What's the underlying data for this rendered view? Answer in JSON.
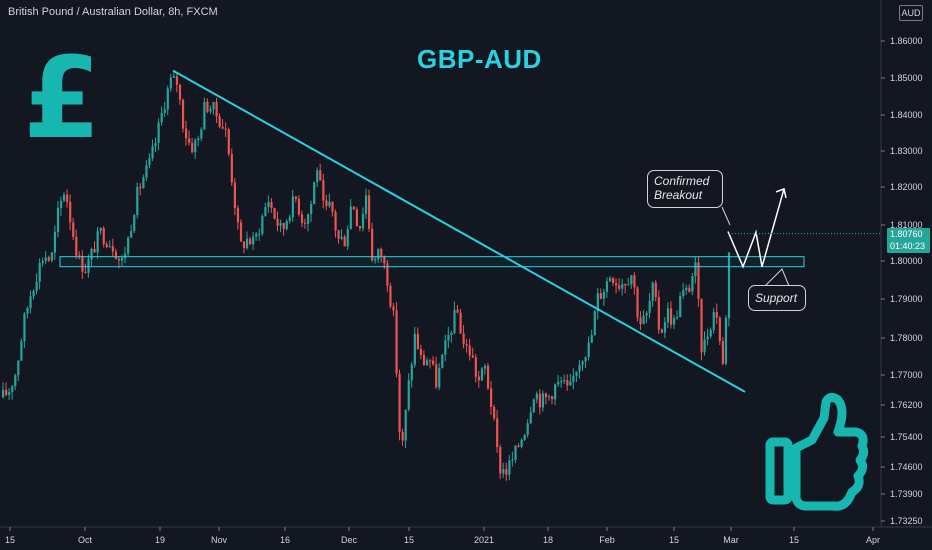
{
  "header": {
    "symbol_title": "British Pound / Australian Dollar, 8h, FXCM"
  },
  "title": "GBP-AUD",
  "currency": "AUD",
  "last_price": {
    "price": "1.80760",
    "countdown": "01:40:23"
  },
  "annotations": {
    "breakout_line1": "Confirmed",
    "breakout_line2": "Breakout",
    "support": "Support"
  },
  "icons": {
    "pound": "pound-sign-icon",
    "thumbs_up": "thumbs-up-icon"
  },
  "colors": {
    "background": "#131722",
    "bull": "#26a69a",
    "bear": "#ef5350",
    "accent": "#26d3e0",
    "text": "#d1d4dc"
  },
  "chart_data": {
    "type": "candlestick",
    "title": "GBP-AUD",
    "symbol": "British Pound / Australian Dollar, 8h, FXCM",
    "ylim": [
      1.7315,
      1.873
    ],
    "y_ticks": [
      "1.86000",
      "1.85000",
      "1.84000",
      "1.83000",
      "1.82000",
      "1.81000",
      "1.80000",
      "1.79000",
      "1.78000",
      "1.77000",
      "1.76200",
      "1.75400",
      "1.74600",
      "1.73900",
      "1.73250"
    ],
    "x_ticks": [
      "15",
      "Oct",
      "19",
      "Nov",
      "16",
      "Dec",
      "15",
      "2021",
      "18",
      "Feb",
      "15",
      "Mar",
      "15",
      "Apr"
    ],
    "close_path": [
      [
        1,
        1.764
      ],
      [
        8,
        1.766
      ],
      [
        15,
        1.771
      ],
      [
        22,
        1.783
      ],
      [
        29,
        1.791
      ],
      [
        36,
        1.797
      ],
      [
        43,
        1.802
      ],
      [
        50,
        1.8
      ],
      [
        57,
        1.813
      ],
      [
        64,
        1.82
      ],
      [
        71,
        1.809
      ],
      [
        78,
        1.8
      ],
      [
        85,
        1.798
      ],
      [
        92,
        1.803
      ],
      [
        99,
        1.808
      ],
      [
        106,
        1.806
      ],
      [
        113,
        1.804
      ],
      [
        120,
        1.799
      ],
      [
        127,
        1.806
      ],
      [
        134,
        1.816
      ],
      [
        141,
        1.822
      ],
      [
        148,
        1.826
      ],
      [
        155,
        1.833
      ],
      [
        162,
        1.842
      ],
      [
        169,
        1.849
      ],
      [
        176,
        1.849
      ],
      [
        183,
        1.836
      ],
      [
        190,
        1.831
      ],
      [
        197,
        1.833
      ],
      [
        204,
        1.843
      ],
      [
        211,
        1.842
      ],
      [
        218,
        1.839
      ],
      [
        225,
        1.835
      ],
      [
        232,
        1.82
      ],
      [
        239,
        1.804
      ],
      [
        246,
        1.806
      ],
      [
        253,
        1.805
      ],
      [
        260,
        1.811
      ],
      [
        267,
        1.817
      ],
      [
        274,
        1.812
      ],
      [
        281,
        1.808
      ],
      [
        288,
        1.814
      ],
      [
        295,
        1.817
      ],
      [
        302,
        1.811
      ],
      [
        309,
        1.814
      ],
      [
        316,
        1.826
      ],
      [
        323,
        1.813
      ],
      [
        330,
        1.815
      ],
      [
        337,
        1.806
      ],
      [
        344,
        1.806
      ],
      [
        351,
        1.817
      ],
      [
        358,
        1.809
      ],
      [
        365,
        1.818
      ],
      [
        372,
        1.799
      ],
      [
        379,
        1.803
      ],
      [
        386,
        1.796
      ],
      [
        393,
        1.784
      ],
      [
        400,
        1.748
      ],
      [
        407,
        1.766
      ],
      [
        414,
        1.781
      ],
      [
        421,
        1.773
      ],
      [
        428,
        1.775
      ],
      [
        435,
        1.768
      ],
      [
        442,
        1.775
      ],
      [
        449,
        1.782
      ],
      [
        456,
        1.787
      ],
      [
        463,
        1.778
      ],
      [
        470,
        1.776
      ],
      [
        477,
        1.768
      ],
      [
        484,
        1.772
      ],
      [
        491,
        1.761
      ],
      [
        498,
        1.746
      ],
      [
        505,
        1.745
      ],
      [
        512,
        1.748
      ],
      [
        519,
        1.753
      ],
      [
        526,
        1.758
      ],
      [
        533,
        1.766
      ],
      [
        540,
        1.763
      ],
      [
        547,
        1.764
      ],
      [
        554,
        1.767
      ],
      [
        561,
        1.768
      ],
      [
        568,
        1.765
      ],
      [
        575,
        1.772
      ],
      [
        582,
        1.776
      ],
      [
        589,
        1.778
      ],
      [
        596,
        1.79
      ],
      [
        603,
        1.793
      ],
      [
        610,
        1.797
      ],
      [
        617,
        1.794
      ],
      [
        624,
        1.795
      ],
      [
        631,
        1.797
      ],
      [
        638,
        1.784
      ],
      [
        645,
        1.785
      ],
      [
        652,
        1.793
      ],
      [
        659,
        1.781
      ],
      [
        666,
        1.787
      ],
      [
        673,
        1.784
      ],
      [
        680,
        1.791
      ],
      [
        687,
        1.792
      ],
      [
        694,
        1.799
      ],
      [
        701,
        1.776
      ],
      [
        708,
        1.783
      ],
      [
        715,
        1.788
      ],
      [
        722,
        1.772
      ],
      [
        729,
        1.8076
      ]
    ],
    "resistance_zone": [
      1.7985,
      1.8012
    ],
    "trendline": {
      "from": [
        173,
        1.852
      ],
      "to": [
        745,
        1.7655
      ]
    },
    "projection_path": [
      [
        728,
        1.8082
      ],
      [
        743,
        1.7985
      ],
      [
        756,
        1.808
      ],
      [
        762,
        1.7985
      ],
      [
        784,
        1.8195
      ]
    ],
    "last_price": 1.8076
  }
}
